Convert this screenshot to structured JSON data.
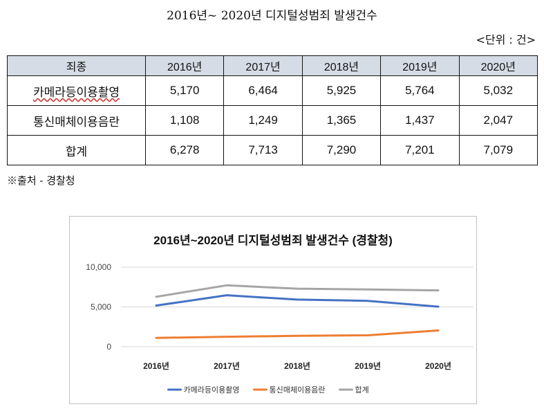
{
  "doc": {
    "title": "2016년~ 2020년 디지털성범죄 발생건수",
    "unit": "<단위 : 건>",
    "source": "※출처 - 경찰청"
  },
  "table": {
    "headers": [
      "죄종",
      "2016년",
      "2017년",
      "2018년",
      "2019년",
      "2020년"
    ],
    "rows": [
      {
        "label": "카메라등이용촬영",
        "values": [
          "5,170",
          "6,464",
          "5,925",
          "5,764",
          "5,032"
        ]
      },
      {
        "label": "통신매체이용음란",
        "values": [
          "1,108",
          "1,249",
          "1,365",
          "1,437",
          "2,047"
        ]
      },
      {
        "label": "합계",
        "values": [
          "6,278",
          "7,713",
          "7,290",
          "7,201",
          "7,079"
        ]
      }
    ],
    "header_bg": "#d6dce5"
  },
  "chart_data": {
    "type": "line",
    "title": "2016년~2020년 디지털성범죄 발생건수 (경찰청)",
    "categories": [
      "2016년",
      "2017년",
      "2018년",
      "2019년",
      "2020년"
    ],
    "series": [
      {
        "name": "카메라등이용촬영",
        "color": "#4472c4",
        "values": [
          5170,
          6464,
          5925,
          5764,
          5032
        ]
      },
      {
        "name": "통신매체이용음란",
        "color": "#ed7d31",
        "values": [
          1108,
          1249,
          1365,
          1437,
          2047
        ]
      },
      {
        "name": "합계",
        "color": "#a5a5a5",
        "values": [
          6278,
          7713,
          7290,
          7201,
          7079
        ]
      }
    ],
    "yticks": [
      "0",
      "5,000",
      "10,000"
    ],
    "ytick_values": [
      0,
      5000,
      10000
    ],
    "ylim": [
      0,
      10000
    ],
    "xlabel": "",
    "ylabel": "",
    "grid": true,
    "legend": "bottom"
  }
}
